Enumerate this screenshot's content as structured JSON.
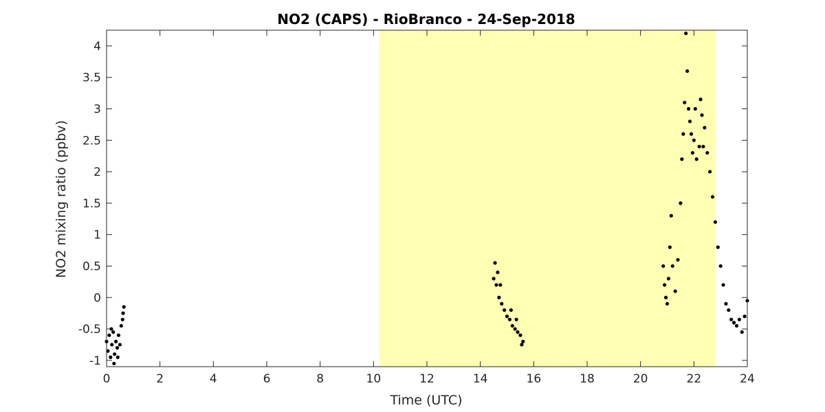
{
  "chart_data": {
    "type": "scatter",
    "title": "NO2 (CAPS) - RioBranco - 24-Sep-2018",
    "xlabel": "Time (UTC)",
    "ylabel": "NO2 mixing ratio (ppbv)",
    "xlim": [
      0,
      24
    ],
    "ylim": [
      -1.1,
      4.25
    ],
    "xticks": [
      0,
      2,
      4,
      6,
      8,
      10,
      12,
      14,
      16,
      18,
      20,
      22,
      24
    ],
    "xtick_labels": [
      "0",
      "2",
      "4",
      "6",
      "8",
      "10",
      "12",
      "14",
      "16",
      "18",
      "20",
      "22",
      "24"
    ],
    "yticks": [
      -1,
      -0.5,
      0,
      0.5,
      1,
      1.5,
      2,
      2.5,
      3,
      3.5,
      4
    ],
    "ytick_labels": [
      "-1",
      "-0.5",
      "0",
      "0.5",
      "1",
      "1.5",
      "2",
      "2.5",
      "3",
      "3.5",
      "4"
    ],
    "grid": false,
    "daylight_shading": {
      "x_start": 10.2,
      "x_end": 22.8,
      "color": "#ffffb3"
    },
    "marker_color": "#000000",
    "series": [
      {
        "points": [
          [
            0.0,
            -0.7
          ],
          [
            0.05,
            -0.85
          ],
          [
            0.1,
            -0.6
          ],
          [
            0.15,
            -0.95
          ],
          [
            0.2,
            -0.75
          ],
          [
            0.25,
            -0.55
          ],
          [
            0.3,
            -0.9
          ],
          [
            0.35,
            -0.7
          ],
          [
            0.4,
            -0.8
          ],
          [
            0.45,
            -0.6
          ],
          [
            0.5,
            -0.75
          ],
          [
            0.55,
            -0.45
          ],
          [
            0.6,
            -0.35
          ],
          [
            0.62,
            -0.25
          ],
          [
            0.65,
            -0.15
          ],
          [
            0.28,
            -1.05
          ],
          [
            0.18,
            -0.5
          ],
          [
            0.42,
            -0.95
          ],
          [
            14.5,
            0.3
          ],
          [
            14.55,
            0.55
          ],
          [
            14.6,
            0.2
          ],
          [
            14.65,
            0.4
          ],
          [
            14.7,
            0.0
          ],
          [
            14.8,
            -0.1
          ],
          [
            14.9,
            -0.2
          ],
          [
            15.0,
            -0.3
          ],
          [
            15.1,
            -0.35
          ],
          [
            15.2,
            -0.45
          ],
          [
            15.3,
            -0.5
          ],
          [
            15.4,
            -0.55
          ],
          [
            15.5,
            -0.6
          ],
          [
            15.6,
            -0.7
          ],
          [
            15.15,
            -0.2
          ],
          [
            15.35,
            -0.35
          ],
          [
            14.75,
            0.2
          ],
          [
            15.55,
            -0.75
          ],
          [
            20.85,
            0.5
          ],
          [
            20.9,
            0.2
          ],
          [
            20.95,
            0.0
          ],
          [
            21.0,
            -0.1
          ],
          [
            21.05,
            0.3
          ],
          [
            21.1,
            0.8
          ],
          [
            21.15,
            1.3
          ],
          [
            21.2,
            0.5
          ],
          [
            21.3,
            0.1
          ],
          [
            21.4,
            0.6
          ],
          [
            21.5,
            1.5
          ],
          [
            21.55,
            2.2
          ],
          [
            21.6,
            2.6
          ],
          [
            21.65,
            3.1
          ],
          [
            21.7,
            4.2
          ],
          [
            21.75,
            3.6
          ],
          [
            21.8,
            3.0
          ],
          [
            21.85,
            2.8
          ],
          [
            21.9,
            2.6
          ],
          [
            22.0,
            2.5
          ],
          [
            22.1,
            2.2
          ],
          [
            22.2,
            2.4
          ],
          [
            22.3,
            2.9
          ],
          [
            22.35,
            2.4
          ],
          [
            22.4,
            2.7
          ],
          [
            22.5,
            2.3
          ],
          [
            22.6,
            2.0
          ],
          [
            22.7,
            1.6
          ],
          [
            22.8,
            1.2
          ],
          [
            22.9,
            0.8
          ],
          [
            23.0,
            0.5
          ],
          [
            23.1,
            0.2
          ],
          [
            23.2,
            -0.1
          ],
          [
            23.3,
            -0.2
          ],
          [
            23.4,
            -0.35
          ],
          [
            23.5,
            -0.4
          ],
          [
            23.6,
            -0.45
          ],
          [
            23.7,
            -0.35
          ],
          [
            23.8,
            -0.55
          ],
          [
            23.9,
            -0.3
          ],
          [
            24.0,
            -0.05
          ],
          [
            22.05,
            3.0
          ],
          [
            22.25,
            3.15
          ],
          [
            21.95,
            2.3
          ]
        ]
      }
    ]
  }
}
